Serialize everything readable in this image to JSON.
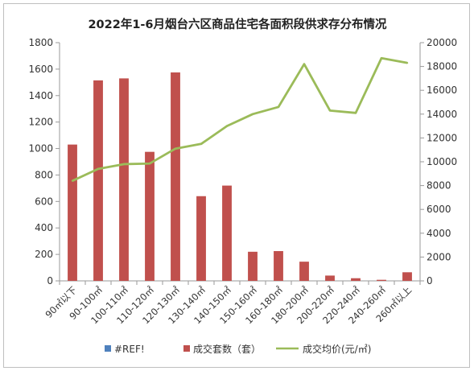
{
  "chart_data": {
    "type": "bar+line",
    "title": "2022年1-6月烟台六区商品住宅各面积段供求存分布情况",
    "categories": [
      "90㎡以下",
      "90-100㎡",
      "100-110㎡",
      "110-120㎡",
      "120-130㎡",
      "130-140㎡",
      "140-150㎡",
      "150-160㎡",
      "160-180㎡",
      "180-200㎡",
      "200-220㎡",
      "220-240㎡",
      "240-260㎡",
      "260㎡以上"
    ],
    "series": [
      {
        "name": "#REF!",
        "type": "bar",
        "axis": "left",
        "color": "#4f81bd",
        "values": [
          0,
          0,
          0,
          0,
          0,
          0,
          0,
          0,
          0,
          0,
          0,
          0,
          0,
          0
        ]
      },
      {
        "name": "成交套数（套）",
        "type": "bar",
        "axis": "left",
        "color": "#c0504d",
        "values": [
          1030,
          1515,
          1530,
          975,
          1575,
          640,
          720,
          220,
          225,
          145,
          40,
          20,
          8,
          65
        ]
      },
      {
        "name": "成交均价(元/㎡)",
        "type": "line",
        "axis": "right",
        "color": "#9bbb59",
        "values": [
          8400,
          9400,
          9800,
          9850,
          11100,
          11500,
          13000,
          14000,
          14600,
          18200,
          14300,
          14100,
          18700,
          18300
        ]
      }
    ],
    "y_left": {
      "min": 0,
      "max": 1800,
      "ticks": [
        "0",
        "200",
        "400",
        "600",
        "800",
        "1000",
        "1200",
        "1400",
        "1600",
        "1800"
      ]
    },
    "y_right": {
      "min": 0,
      "max": 20000,
      "ticks": [
        "0",
        "2000",
        "4000",
        "6000",
        "8000",
        "10000",
        "12000",
        "14000",
        "16000",
        "18000",
        "20000"
      ]
    },
    "grid": false,
    "legend_position": "bottom"
  }
}
